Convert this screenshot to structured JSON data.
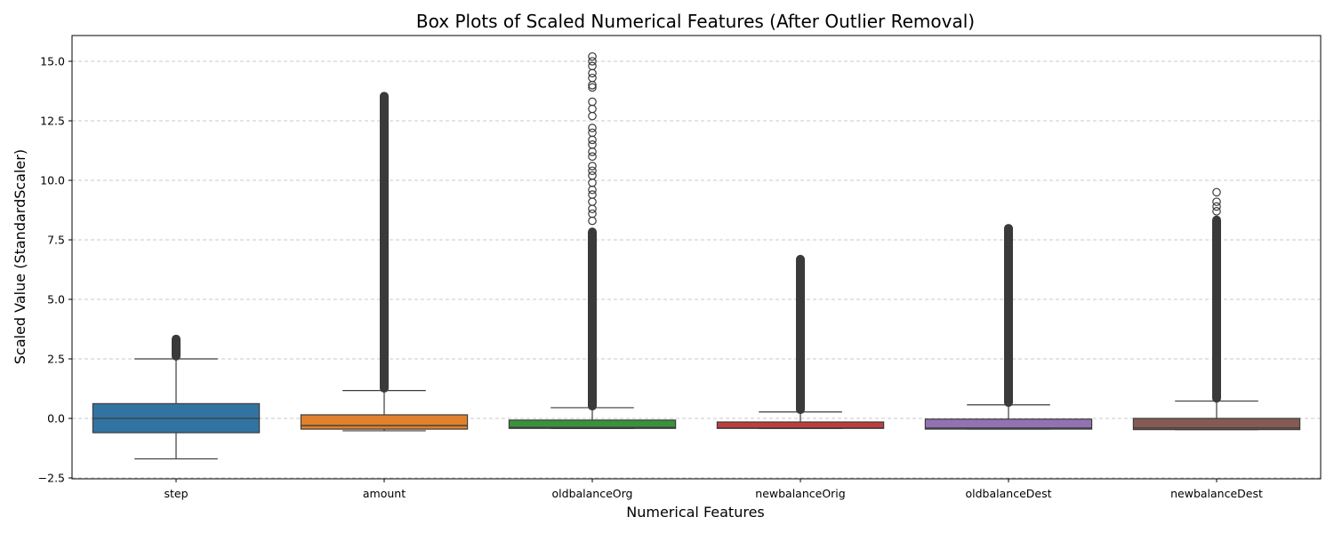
{
  "chart_data": {
    "type": "box",
    "title": "Box Plots of Scaled Numerical Features (After Outlier Removal)",
    "xlabel": "Numerical Features",
    "ylabel": "Scaled Value (StandardScaler)",
    "ylim": [
      -2.5,
      16.2
    ],
    "yticks": [
      -2.5,
      0.0,
      2.5,
      5.0,
      7.5,
      10.0,
      12.5,
      15.0
    ],
    "ytick_labels": [
      "−2.5",
      "0.0",
      "2.5",
      "5.0",
      "7.5",
      "10.0",
      "12.5",
      "15.0"
    ],
    "grid": "y-dashed",
    "categories": [
      "step",
      "amount",
      "oldbalanceOrg",
      "newbalanceOrig",
      "oldbalanceDest",
      "newbalanceDest"
    ],
    "boxes": [
      {
        "name": "step",
        "color": "#3274a1",
        "whisker_low": -1.7,
        "q1": -0.6,
        "median": 0.0,
        "q3": 0.62,
        "whisker_high": 2.5,
        "outlier_range": [
          2.45,
          3.5
        ],
        "outliers": []
      },
      {
        "name": "amount",
        "color": "#e1812c",
        "whisker_low": -0.52,
        "q1": -0.45,
        "median": -0.3,
        "q3": 0.15,
        "whisker_high": 1.17,
        "outlier_range": [
          1.1,
          13.7
        ],
        "outliers": []
      },
      {
        "name": "oldbalanceOrg",
        "color": "#3a923a",
        "whisker_low": -0.42,
        "q1": -0.42,
        "median": -0.38,
        "q3": -0.07,
        "whisker_high": 0.45,
        "outlier_range": [
          0.35,
          8.0
        ],
        "outliers": [
          8.3,
          8.6,
          8.8,
          9.1,
          9.4,
          9.6,
          9.9,
          10.2,
          10.4,
          10.6,
          11.0,
          11.2,
          11.5,
          11.7,
          12.0,
          12.2,
          12.7,
          13.0,
          13.3,
          13.9,
          14.0,
          14.3,
          14.5,
          14.8,
          15.0,
          15.2
        ]
      },
      {
        "name": "newbalanceOrig",
        "color": "#c03d3e",
        "whisker_low": -0.42,
        "q1": -0.42,
        "median": -0.4,
        "q3": -0.15,
        "whisker_high": 0.27,
        "outlier_range": [
          0.2,
          6.85
        ],
        "outliers": []
      },
      {
        "name": "oldbalanceDest",
        "color": "#9372b2",
        "whisker_low": -0.45,
        "q1": -0.45,
        "median": -0.4,
        "q3": -0.03,
        "whisker_high": 0.57,
        "outlier_range": [
          0.5,
          8.15
        ],
        "outliers": []
      },
      {
        "name": "newbalanceDest",
        "color": "#845b53",
        "whisker_low": -0.47,
        "q1": -0.47,
        "median": -0.4,
        "q3": 0.0,
        "whisker_high": 0.73,
        "outlier_range": [
          0.68,
          8.5
        ],
        "outliers": [
          8.7,
          8.9,
          9.1,
          9.5
        ]
      }
    ]
  }
}
